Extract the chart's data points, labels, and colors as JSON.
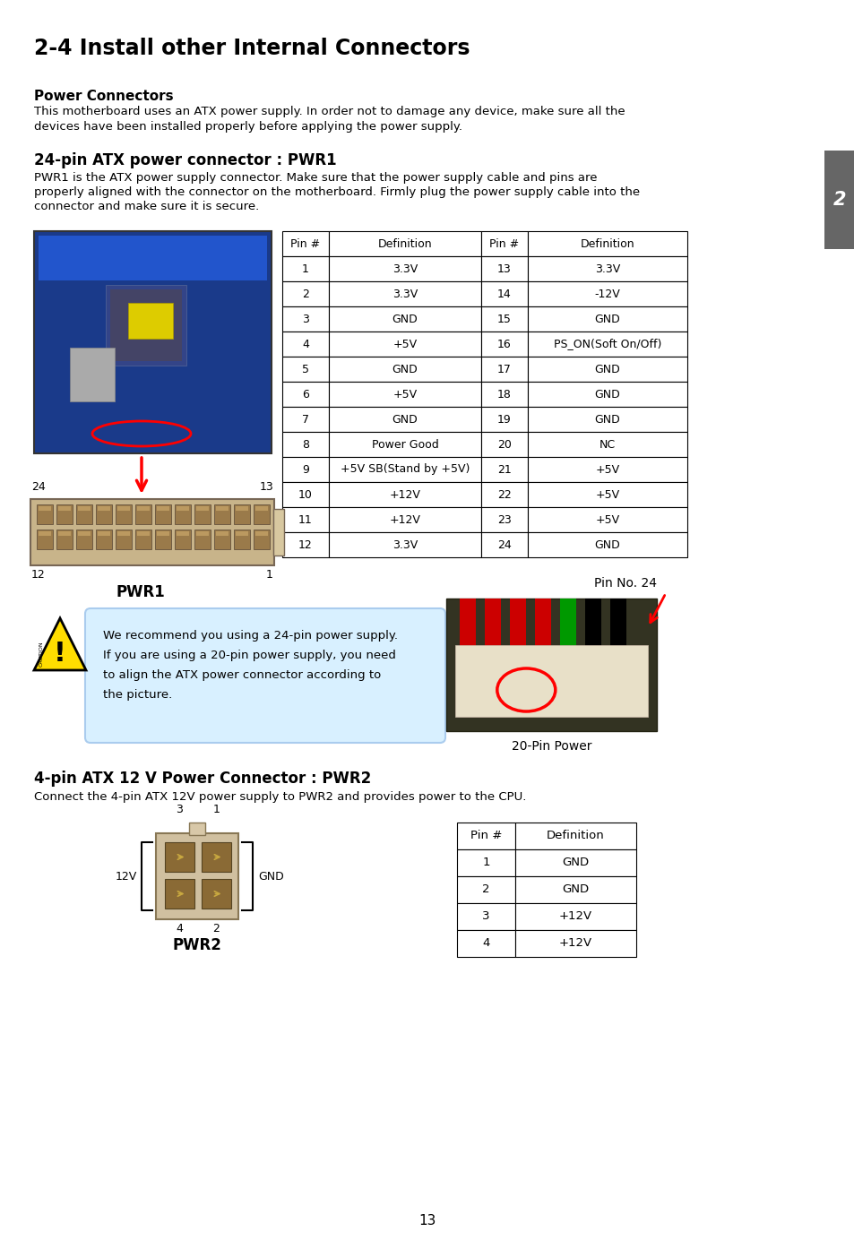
{
  "title": "2-4 Install other Internal Connectors",
  "bg_color": "#ffffff",
  "page_number": "13",
  "section_tab": "2",
  "power_connectors_title": "Power Connectors",
  "power_connectors_text_l1": "This motherboard uses an ATX power supply. In order not to damage any device, make sure all the",
  "power_connectors_text_l2": "devices have been installed properly before applying the power supply.",
  "pwr1_title": "24-pin ATX power connector : PWR1",
  "pwr1_text_l1": "PWR1 is the ATX power supply connector. Make sure that the power supply cable and pins are",
  "pwr1_text_l2": "properly aligned with the connector on the motherboard. Firmly plug the power supply cable into the",
  "pwr1_text_l3": "connector and make sure it is secure.",
  "pwr1_table_headers": [
    "Pin #",
    "Definition",
    "Pin #",
    "Definition"
  ],
  "pwr1_table_data": [
    [
      "1",
      "3.3V",
      "13",
      "3.3V"
    ],
    [
      "2",
      "3.3V",
      "14",
      "-12V"
    ],
    [
      "3",
      "GND",
      "15",
      "GND"
    ],
    [
      "4",
      "+5V",
      "16",
      "PS_ON(Soft On/Off)"
    ],
    [
      "5",
      "GND",
      "17",
      "GND"
    ],
    [
      "6",
      "+5V",
      "18",
      "GND"
    ],
    [
      "7",
      "GND",
      "19",
      "GND"
    ],
    [
      "8",
      "Power Good",
      "20",
      "NC"
    ],
    [
      "9",
      "+5V SB(Stand by +5V)",
      "21",
      "+5V"
    ],
    [
      "10",
      "+12V",
      "22",
      "+5V"
    ],
    [
      "11",
      "+12V",
      "23",
      "+5V"
    ],
    [
      "12",
      "3.3V",
      "24",
      "GND"
    ]
  ],
  "caution_text_l1": "We recommend you using a 24-pin power supply.",
  "caution_text_l2": "If you are using a 20-pin power supply, you need",
  "caution_text_l3": "to align the ATX power connector according to",
  "caution_text_l4": "the picture.",
  "pin_no_24_label": "Pin No. 24",
  "pin_power_label": "20-Pin Power",
  "pwr2_title": "4-pin ATX 12 V Power Connector : PWR2",
  "pwr2_text": "Connect the 4-pin ATX 12V power supply to PWR2 and provides power to the CPU.",
  "pwr2_table_headers": [
    "Pin #",
    "Definition"
  ],
  "pwr2_table_data": [
    [
      "1",
      "GND"
    ],
    [
      "2",
      "GND"
    ],
    [
      "3",
      "+12V"
    ],
    [
      "4",
      "+12V"
    ]
  ],
  "pwr1_label": "PWR1",
  "pwr2_label": "PWR2",
  "label_24": "24",
  "label_13": "13",
  "label_12": "12",
  "label_1": "1",
  "pwr2_label_3": "3",
  "pwr2_label_1": "1",
  "pwr2_label_4": "4",
  "pwr2_label_2": "2",
  "pwr2_12v": "12V",
  "pwr2_gnd": "GND",
  "tab_color": "#666666",
  "table_header_color": "#ffffff",
  "caution_bg": "#d8f0ff",
  "caution_border": "#aaccee",
  "triangle_color": "#ffdd00",
  "connector_body": "#c8b89a",
  "connector_pin": "#8B7355",
  "board_color": "#1a3a8a"
}
